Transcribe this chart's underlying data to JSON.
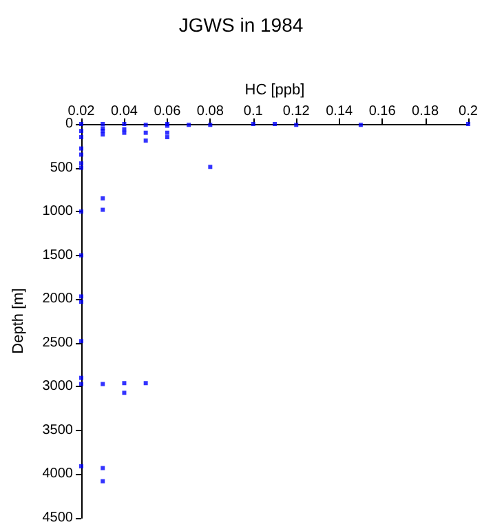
{
  "chart_data": {
    "type": "scatter",
    "title": "JGWS in 1984",
    "xlabel": "HC [ppb]",
    "ylabel": "Depth [m]",
    "x": [
      0.02,
      0.02,
      0.02,
      0.02,
      0.02,
      0.02,
      0.02,
      0.02,
      0.02,
      0.02,
      0.02,
      0.02,
      0.02,
      0.02,
      0.02,
      0.03,
      0.03,
      0.03,
      0.03,
      0.03,
      0.03,
      0.03,
      0.03,
      0.03,
      0.04,
      0.04,
      0.04,
      0.04,
      0.04,
      0.05,
      0.05,
      0.05,
      0.05,
      0.06,
      0.06,
      0.06,
      0.06,
      0.07,
      0.08,
      0.08,
      0.1,
      0.11,
      0.12,
      0.15,
      0.2
    ],
    "values": [
      0,
      80,
      150,
      280,
      350,
      450,
      500,
      1000,
      1500,
      1970,
      2030,
      2480,
      2900,
      2970,
      3910,
      0,
      50,
      80,
      120,
      850,
      980,
      2970,
      3930,
      4080,
      0,
      60,
      100,
      2960,
      3070,
      10,
      100,
      190,
      2960,
      0,
      20,
      100,
      150,
      10,
      10,
      490,
      0,
      0,
      10,
      10,
      0
    ],
    "color": "#0000ff",
    "marker": "square",
    "xlim": [
      0.02,
      0.2
    ],
    "xticks": [
      0.02,
      0.04,
      0.06,
      0.08,
      0.1,
      0.12,
      0.14,
      0.16,
      0.18,
      0.2
    ],
    "ylim": [
      4500,
      0
    ],
    "yticks": [
      0,
      500,
      1000,
      1500,
      2000,
      2500,
      3000,
      3500,
      4000,
      4500
    ],
    "grid": false
  }
}
